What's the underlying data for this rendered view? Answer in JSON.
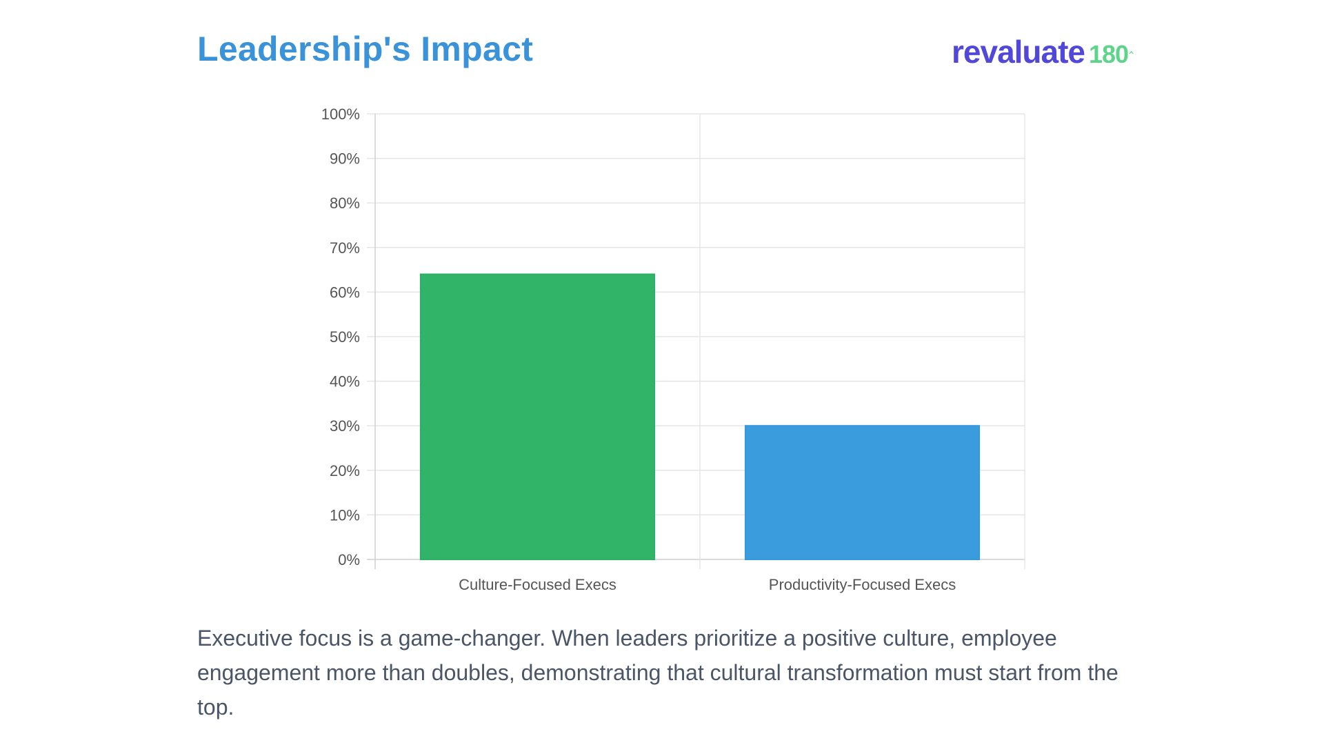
{
  "header": {
    "title": "Leadership's Impact",
    "logo": {
      "word": "revaluate",
      "number": "180",
      "word_color": "#5147d8",
      "number_color": "#5ed48a"
    }
  },
  "chart_data": {
    "type": "bar",
    "categories": [
      "Culture-Focused Execs",
      "Productivity-Focused Execs"
    ],
    "values": [
      64,
      30
    ],
    "colors": [
      "#2ab163",
      "#3498dc"
    ],
    "title": "",
    "xlabel": "",
    "ylabel": "",
    "ylim": [
      0,
      100
    ],
    "yticks": [
      "0%",
      "10%",
      "20%",
      "30%",
      "40%",
      "50%",
      "60%",
      "70%",
      "80%",
      "90%",
      "100%"
    ],
    "y_unit": "%",
    "grid": true,
    "legend": "none"
  },
  "caption": {
    "text": "Executive focus is a game-changer. When leaders prioritize a positive culture, employee engagement more than doubles, demonstrating that cultural transformation must start from the top."
  }
}
